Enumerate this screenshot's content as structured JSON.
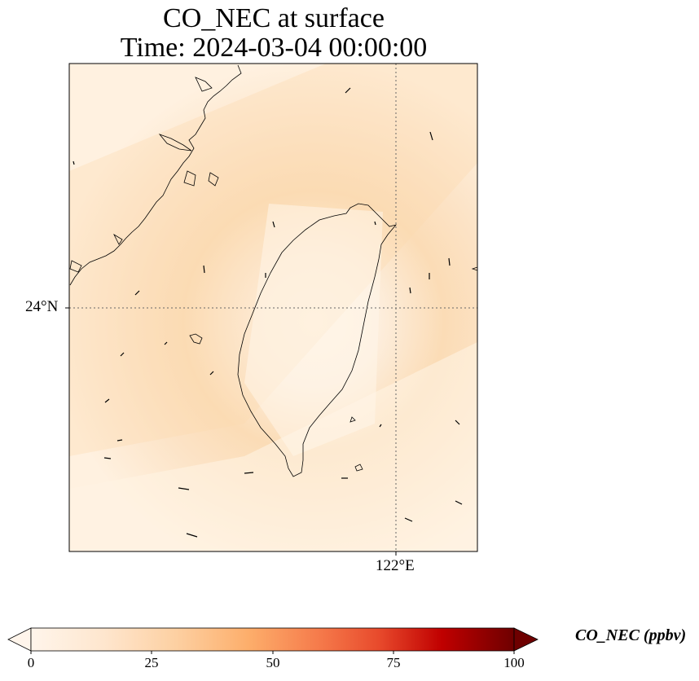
{
  "title": {
    "line1": "CO_NEC at surface",
    "line2": "Time: 2024-03-04 00:00:00"
  },
  "axes": {
    "lat_label": "24°N",
    "lon_label": "122°E"
  },
  "colorbar": {
    "label": "CO_NEC (ppbv)",
    "ticks": [
      "0",
      "25",
      "50",
      "75",
      "100"
    ],
    "range": [
      0,
      100
    ],
    "colormap": "Oranges",
    "extend": "both",
    "colors": [
      "#fff5eb",
      "#fee6ce",
      "#fdd0a2",
      "#fdae6b",
      "#fd8d3c",
      "#f16913",
      "#d94801",
      "#a50000",
      "#5a0000"
    ]
  },
  "map": {
    "field_colors": {
      "low": "#fff4e7",
      "mid": "#fde8cf",
      "high": "#fbd9b0"
    },
    "features": [
      "coastlines",
      "gridlines",
      "wind-vectors"
    ]
  }
}
